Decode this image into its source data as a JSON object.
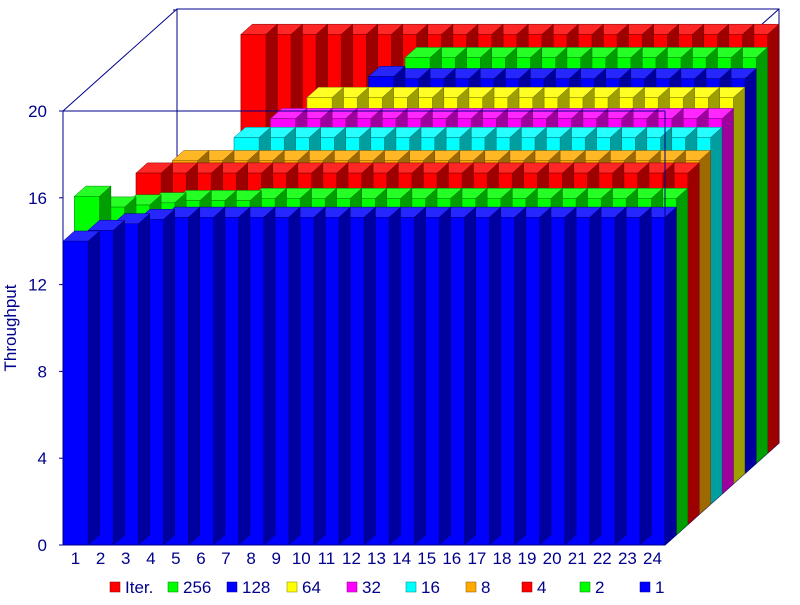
{
  "chart_data": {
    "type": "bar",
    "subtype": "3d-depth-bar",
    "ylabel": "Throughput",
    "xlabel": "",
    "ylim": [
      0,
      20
    ],
    "y_ticks": [
      "0",
      "4",
      "8",
      "12",
      "16",
      "20"
    ],
    "categories": [
      "1",
      "2",
      "3",
      "4",
      "5",
      "6",
      "7",
      "8",
      "9",
      "10",
      "11",
      "12",
      "13",
      "14",
      "15",
      "16",
      "17",
      "18",
      "19",
      "20",
      "21",
      "22",
      "23",
      "24"
    ],
    "grid": false,
    "legend_position": "bottom",
    "series": [
      {
        "name": "Iter.",
        "color": "#ff0000",
        "values": [
          0,
          0,
          0,
          19.3,
          19.3,
          19.3,
          19.3,
          19.3,
          19.3,
          19.3,
          19.3,
          19.3,
          19.3,
          19.3,
          19.3,
          19.3,
          19.3,
          19.3,
          19.3,
          19.3,
          19.3,
          19.3,
          19.3,
          19.3
        ]
      },
      {
        "name": "256",
        "color": "#00ff00",
        "values": [
          0,
          0,
          0,
          0,
          0,
          0,
          0,
          0,
          0,
          0,
          18.7,
          18.7,
          18.7,
          18.7,
          18.7,
          18.7,
          18.7,
          18.7,
          18.7,
          18.7,
          18.7,
          18.7,
          18.7,
          18.7
        ]
      },
      {
        "name": "128",
        "color": "#0000ff",
        "values": [
          0,
          0,
          0,
          0,
          0,
          0,
          0,
          0,
          0,
          18.3,
          18.2,
          18.2,
          18.2,
          18.2,
          18.2,
          18.2,
          18.2,
          18.2,
          18.2,
          18.2,
          18.2,
          18.2,
          18.2,
          18.2
        ]
      },
      {
        "name": "64",
        "color": "#ffff00",
        "values": [
          0,
          0,
          0,
          0,
          0,
          0,
          0,
          17.8,
          17.8,
          17.8,
          17.8,
          17.8,
          17.8,
          17.8,
          17.8,
          17.8,
          17.8,
          17.8,
          17.8,
          17.8,
          17.8,
          17.8,
          17.8,
          17.8
        ]
      },
      {
        "name": "32",
        "color": "#ff00ff",
        "values": [
          0,
          0,
          0,
          0,
          0,
          0,
          17.3,
          17.3,
          17.3,
          17.3,
          17.3,
          17.3,
          17.3,
          17.3,
          17.3,
          17.3,
          17.3,
          17.3,
          17.3,
          17.3,
          17.3,
          17.3,
          17.3,
          17.3
        ]
      },
      {
        "name": "16",
        "color": "#00ffff",
        "values": [
          0,
          0,
          0,
          0,
          0,
          16.9,
          16.9,
          16.9,
          16.9,
          16.9,
          16.9,
          16.9,
          16.9,
          16.9,
          16.9,
          16.9,
          16.9,
          16.9,
          16.9,
          16.9,
          16.9,
          16.9,
          16.9,
          16.9
        ]
      },
      {
        "name": "8",
        "color": "#ffaa00",
        "values": [
          0,
          0,
          0,
          16.3,
          16.3,
          16.3,
          16.3,
          16.3,
          16.3,
          16.3,
          16.3,
          16.3,
          16.3,
          16.3,
          16.3,
          16.3,
          16.3,
          16.3,
          16.3,
          16.3,
          16.3,
          16.3,
          16.3,
          16.3
        ]
      },
      {
        "name": "4",
        "color": "#ff0000",
        "values": [
          0,
          0,
          16.2,
          16.2,
          16.2,
          16.2,
          16.2,
          16.2,
          16.2,
          16.2,
          16.2,
          16.2,
          16.2,
          16.2,
          16.2,
          16.2,
          16.2,
          16.2,
          16.2,
          16.2,
          16.2,
          16.2,
          16.2,
          16.2
        ]
      },
      {
        "name": "2",
        "color": "#00ff00",
        "values": [
          15.6,
          15.1,
          15.2,
          15.3,
          15.4,
          15.4,
          15.4,
          15.5,
          15.5,
          15.5,
          15.5,
          15.5,
          15.5,
          15.5,
          15.5,
          15.5,
          15.5,
          15.5,
          15.5,
          15.5,
          15.5,
          15.5,
          15.5,
          15.5
        ]
      },
      {
        "name": "1",
        "color": "#0000ff",
        "values": [
          14.0,
          14.5,
          14.8,
          15.0,
          15.1,
          15.1,
          15.1,
          15.1,
          15.1,
          15.1,
          15.1,
          15.1,
          15.1,
          15.1,
          15.1,
          15.1,
          15.1,
          15.1,
          15.1,
          15.1,
          15.1,
          15.1,
          15.1,
          15.1
        ]
      }
    ]
  }
}
